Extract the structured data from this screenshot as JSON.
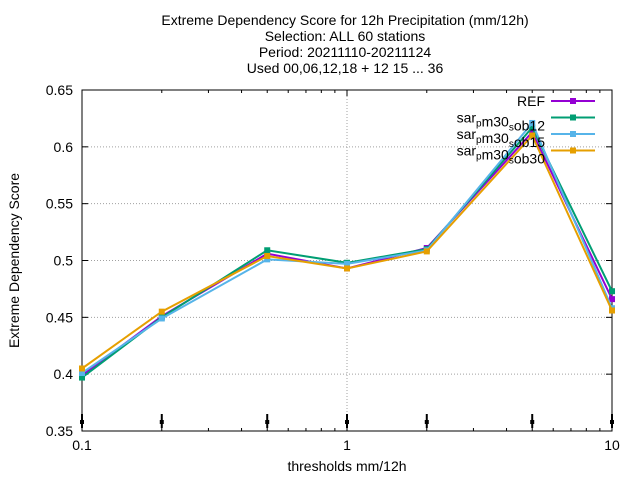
{
  "chart_data": {
    "type": "line",
    "title_lines": [
      "Extreme Dependency Score  for 12h Precipitation (mm/12h)",
      "Selection: ALL     60 stations",
      "Period: 20211110-20211124",
      "Used 00,06,12,18 + 12 15 ... 36"
    ],
    "xlabel": "thresholds mm/12h",
    "ylabel": "Extreme Dependency Score",
    "x_scale": "log",
    "xlim": [
      0.1,
      10
    ],
    "ylim": [
      0.35,
      0.65
    ],
    "x_ticks": [
      {
        "value": 0.1,
        "label": "0.1"
      },
      {
        "value": 1,
        "label": "1"
      },
      {
        "value": 10,
        "label": "10"
      }
    ],
    "y_ticks": [
      {
        "value": 0.35,
        "label": "0.35"
      },
      {
        "value": 0.4,
        "label": "0.4"
      },
      {
        "value": 0.45,
        "label": "0.45"
      },
      {
        "value": 0.5,
        "label": "0.5"
      },
      {
        "value": 0.55,
        "label": "0.55"
      },
      {
        "value": 0.6,
        "label": "0.6"
      },
      {
        "value": 0.65,
        "label": "0.65"
      }
    ],
    "grid": true,
    "legend_position": "top-right",
    "x": [
      0.1,
      0.2,
      0.5,
      1,
      2,
      5,
      10
    ],
    "series": [
      {
        "name": "REF",
        "color": "#9400d3",
        "values": [
          0.399,
          0.451,
          0.506,
          0.493,
          0.511,
          0.613,
          0.466
        ]
      },
      {
        "name": "sar_pm30_sob12",
        "name_parts": [
          [
            "sar",
            0
          ],
          [
            "p",
            1
          ],
          [
            "m30",
            0
          ],
          [
            "s",
            1
          ],
          [
            "ob12",
            0
          ]
        ],
        "color": "#009e73",
        "values": [
          0.397,
          0.45,
          0.509,
          0.498,
          0.51,
          0.617,
          0.473
        ]
      },
      {
        "name": "sar_pm30_sob15",
        "name_parts": [
          [
            "sar",
            0
          ],
          [
            "p",
            1
          ],
          [
            "m30",
            0
          ],
          [
            "s",
            1
          ],
          [
            "ob15",
            0
          ]
        ],
        "color": "#56b4e9",
        "values": [
          0.401,
          0.449,
          0.501,
          0.497,
          0.509,
          0.621,
          0.458
        ]
      },
      {
        "name": "sar_pm30_sob30",
        "name_parts": [
          [
            "sar",
            0
          ],
          [
            "p",
            1
          ],
          [
            "m30",
            0
          ],
          [
            "s",
            1
          ],
          [
            "ob30",
            0
          ]
        ],
        "color": "#e69f00",
        "values": [
          0.405,
          0.455,
          0.504,
          0.493,
          0.508,
          0.61,
          0.456
        ]
      }
    ],
    "bottom_markers_x": [
      0.1,
      0.2,
      0.5,
      1,
      2,
      5,
      10
    ]
  }
}
